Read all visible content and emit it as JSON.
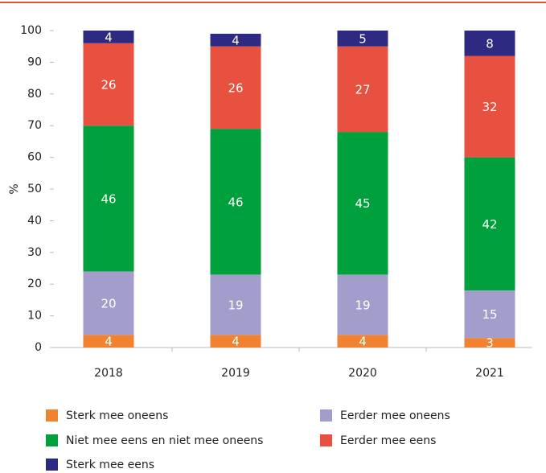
{
  "chart_data": {
    "type": "stacked_bar",
    "ylabel": "%",
    "categories": [
      "2018",
      "2019",
      "2020",
      "2021"
    ],
    "series": [
      {
        "name": "Sterk mee oneens",
        "color": "#f08232",
        "values": [
          4,
          4,
          4,
          3
        ]
      },
      {
        "name": "Eerder mee oneens",
        "color": "#a39dcb",
        "values": [
          20,
          19,
          19,
          15
        ]
      },
      {
        "name": "Niet mee eens en niet mee oneens",
        "color": "#00a03c",
        "values": [
          46,
          46,
          45,
          42
        ]
      },
      {
        "name": "Eerder mee eens",
        "color": "#e8503f",
        "values": [
          26,
          26,
          27,
          32
        ]
      },
      {
        "name": "Sterk mee eens",
        "color": "#2e2a82",
        "values": [
          4,
          4,
          5,
          8
        ]
      }
    ],
    "ylim": [
      0,
      100
    ],
    "yticks": [
      0,
      10,
      20,
      30,
      40,
      50,
      60,
      70,
      80,
      90,
      100
    ]
  }
}
